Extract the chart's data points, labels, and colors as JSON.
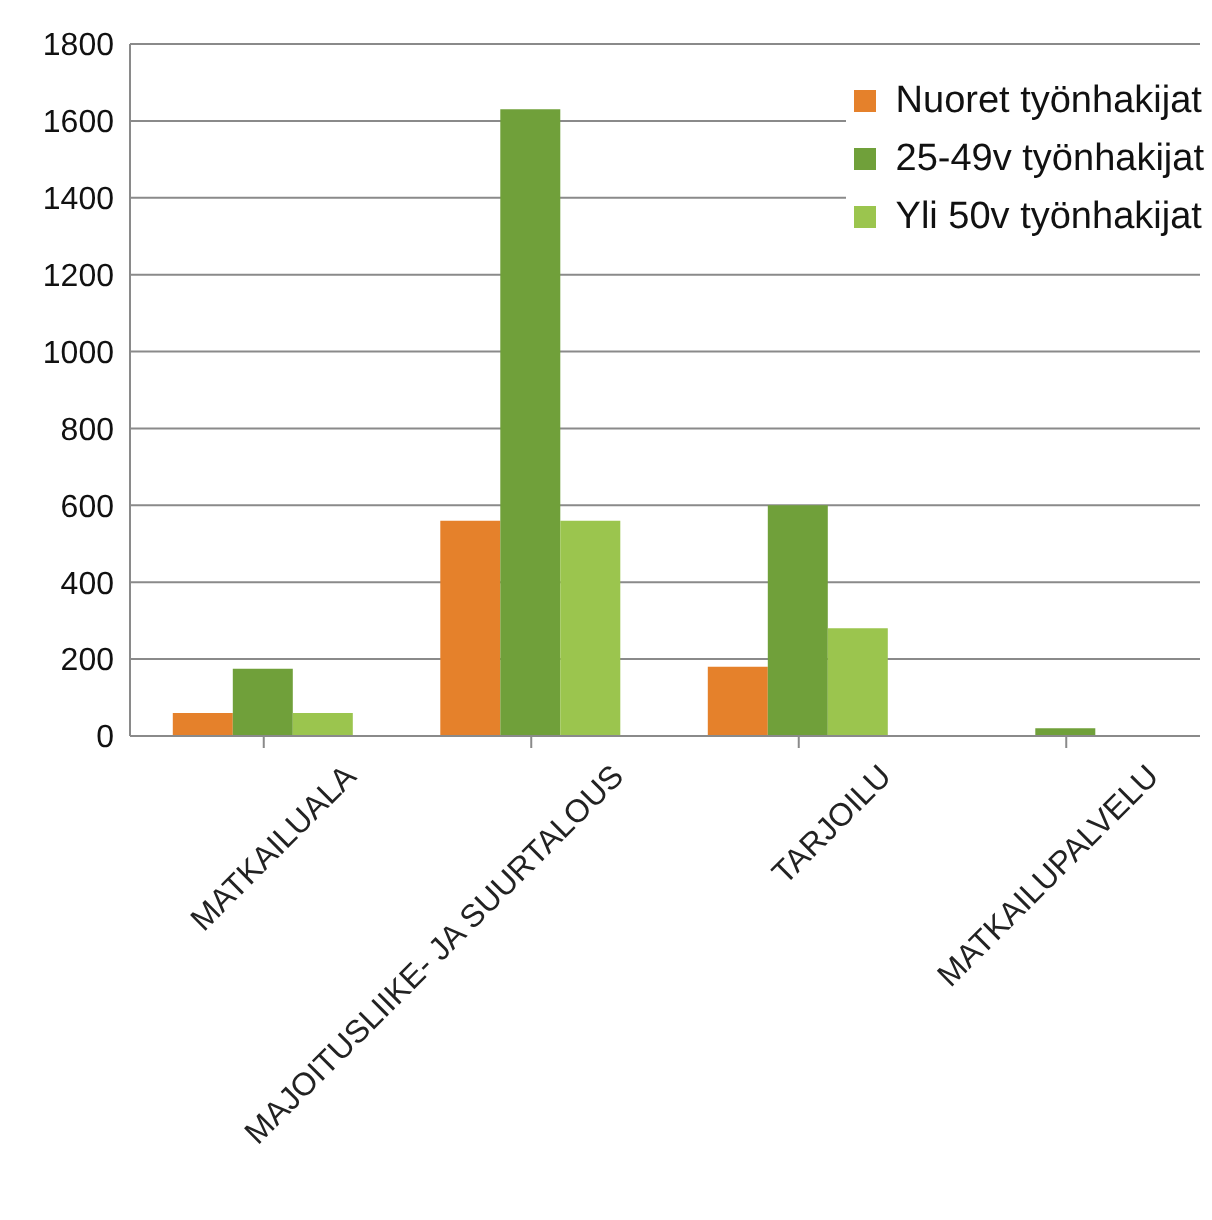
{
  "chart_data": {
    "type": "bar",
    "categories": [
      "MATKAILUALA",
      "MAJOITUSLIIKE- JA SUURTALOUS",
      "TARJOILU",
      "MATKAILUPALVELU"
    ],
    "series": [
      {
        "name": "Nuoret työnhakijat",
        "color": "#e5812b",
        "values": [
          60,
          560,
          180,
          0
        ]
      },
      {
        "name": "25-49v työnhakijat",
        "color": "#70a03a",
        "values": [
          175,
          1630,
          600,
          20
        ]
      },
      {
        "name": "Yli 50v työnhakijat",
        "color": "#9bc54e",
        "values": [
          60,
          560,
          280,
          0
        ]
      }
    ],
    "ylim": [
      0,
      1800
    ],
    "yticks": [
      0,
      200,
      400,
      600,
      800,
      1000,
      1200,
      1400,
      1600,
      1800
    ],
    "grid": "y",
    "legend": "top right"
  }
}
